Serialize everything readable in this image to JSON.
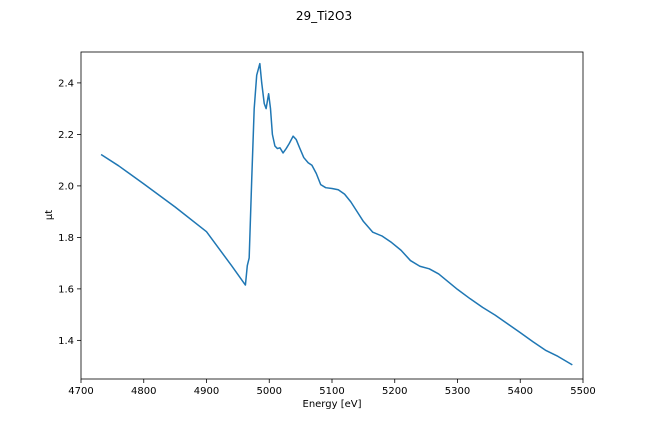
{
  "chart_data": {
    "type": "line",
    "title": "29_Ti2O3",
    "xlabel": "Energy [eV]",
    "ylabel": "μt",
    "xlim": [
      4700,
      5500
    ],
    "ylim": [
      1.25,
      2.52
    ],
    "xticks": [
      4700,
      4800,
      4900,
      5000,
      5100,
      5200,
      5300,
      5400,
      5500
    ],
    "yticks": [
      1.4,
      1.6,
      1.8,
      2.0,
      2.2,
      2.4
    ],
    "xtick_labels": [
      "4700",
      "4800",
      "4900",
      "5000",
      "5100",
      "5200",
      "5300",
      "5400",
      "5500"
    ],
    "ytick_labels": [
      "1.4",
      "1.6",
      "1.8",
      "2.0",
      "2.2",
      "2.4"
    ],
    "grid": false,
    "series_color": "#1f77b4",
    "series": [
      {
        "x": [
          4732,
          4760,
          4800,
          4850,
          4900,
          4940,
          4962,
          4965,
          4968,
          4972,
          4976,
          4980,
          4985,
          4988,
          4992,
          4995,
          4999,
          5002,
          5005,
          5009,
          5013,
          5017,
          5022,
          5027,
          5032,
          5038,
          5043,
          5048,
          5055,
          5062,
          5068,
          5075,
          5082,
          5090,
          5100,
          5110,
          5120,
          5130,
          5140,
          5150,
          5165,
          5180,
          5195,
          5210,
          5225,
          5240,
          5255,
          5270,
          5285,
          5300,
          5320,
          5340,
          5360,
          5380,
          5400,
          5420,
          5440,
          5460,
          5483
        ],
        "y": [
          2.122,
          2.078,
          2.008,
          1.918,
          1.822,
          1.69,
          1.615,
          1.69,
          1.72,
          2.02,
          2.3,
          2.43,
          2.475,
          2.4,
          2.32,
          2.3,
          2.358,
          2.3,
          2.2,
          2.155,
          2.145,
          2.148,
          2.128,
          2.145,
          2.165,
          2.193,
          2.18,
          2.15,
          2.11,
          2.09,
          2.08,
          2.048,
          2.005,
          1.993,
          1.99,
          1.985,
          1.968,
          1.938,
          1.9,
          1.862,
          1.82,
          1.805,
          1.78,
          1.75,
          1.71,
          1.688,
          1.678,
          1.658,
          1.628,
          1.598,
          1.562,
          1.528,
          1.498,
          1.464,
          1.43,
          1.395,
          1.362,
          1.338,
          1.305
        ]
      }
    ]
  }
}
